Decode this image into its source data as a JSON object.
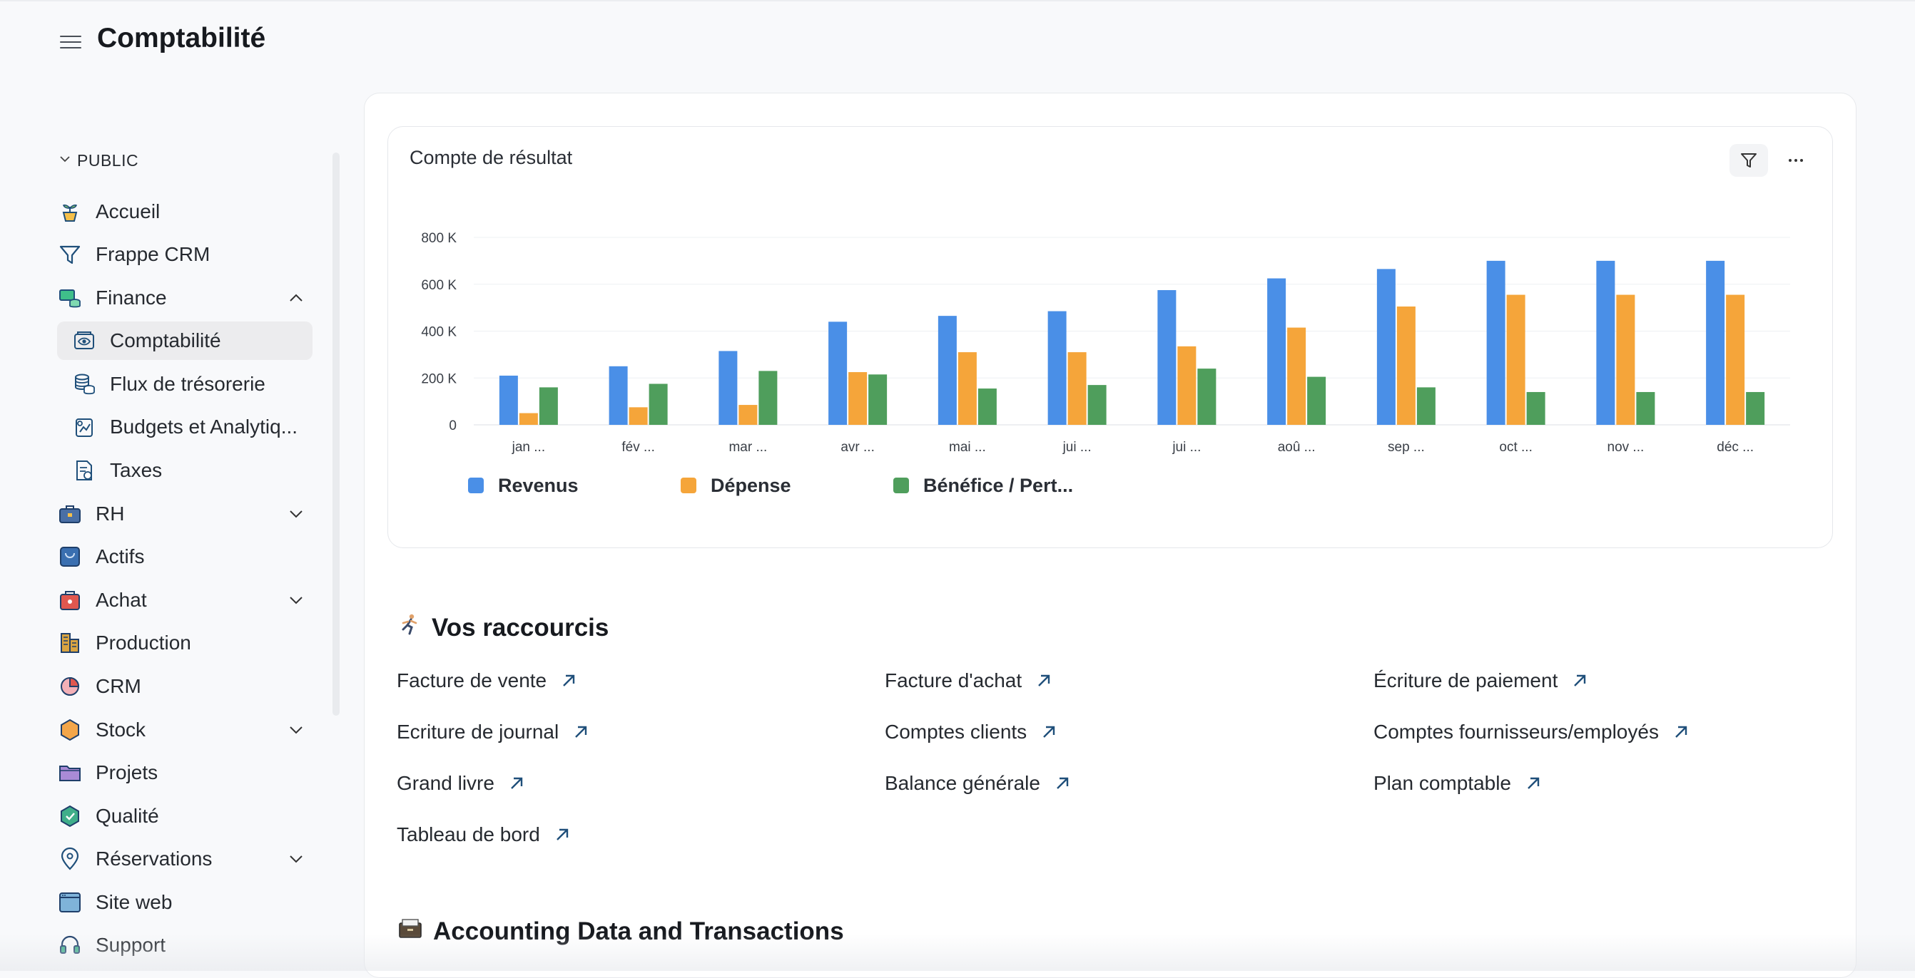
{
  "header": {
    "title": "Comptabilité"
  },
  "sidebar": {
    "section_label": "PUBLIC",
    "items": [
      {
        "label": "Accueil",
        "icon": "home-plant-icon"
      },
      {
        "label": "Frappe CRM",
        "icon": "funnel-icon"
      },
      {
        "label": "Finance",
        "icon": "finance-money-icon",
        "expanded": true
      },
      {
        "label": "Comptabilité",
        "icon": "accounting-eye-icon",
        "sub": true,
        "active": true
      },
      {
        "label": "Flux de trésorerie",
        "icon": "coins-stack-icon",
        "sub": true
      },
      {
        "label": "Budgets et Analytiq...",
        "icon": "budget-chart-icon",
        "sub": true
      },
      {
        "label": "Taxes",
        "icon": "tax-document-icon",
        "sub": true
      },
      {
        "label": "RH",
        "icon": "briefcase-icon",
        "collapsed": true
      },
      {
        "label": "Actifs",
        "icon": "assets-box-icon"
      },
      {
        "label": "Achat",
        "icon": "purchase-bag-icon",
        "collapsed": true
      },
      {
        "label": "Production",
        "icon": "factory-building-icon"
      },
      {
        "label": "CRM",
        "icon": "pie-chart-icon"
      },
      {
        "label": "Stock",
        "icon": "hexagon-box-icon",
        "collapsed": true
      },
      {
        "label": "Projets",
        "icon": "folder-icon"
      },
      {
        "label": "Qualité",
        "icon": "quality-shield-icon"
      },
      {
        "label": "Réservations",
        "icon": "location-pin-icon",
        "collapsed": true
      },
      {
        "label": "Site web",
        "icon": "browser-window-icon"
      },
      {
        "label": "Support",
        "icon": "headset-icon"
      }
    ]
  },
  "chart_card": {
    "title": "Compte de résultat"
  },
  "chart_data": {
    "type": "bar",
    "title": "Compte de résultat",
    "categories": [
      "jan ...",
      "fév ...",
      "mar ...",
      "avr ...",
      "mai ...",
      "jui ...",
      "jui ...",
      "aoû ...",
      "sep ...",
      "oct ...",
      "nov ...",
      "déc ..."
    ],
    "ylim": [
      0,
      800000
    ],
    "yticks": [
      "0",
      "200 K",
      "400 K",
      "600 K",
      "800 K"
    ],
    "grid": true,
    "legend_position": "bottom-left",
    "series": [
      {
        "name": "Revenus",
        "color": "#4a8fe7",
        "values": [
          210000,
          250000,
          315000,
          440000,
          465000,
          485000,
          575000,
          625000,
          665000,
          700000,
          700000,
          700000
        ]
      },
      {
        "name": "Dépense",
        "color": "#f5a53a",
        "values": [
          50000,
          75000,
          85000,
          225000,
          310000,
          310000,
          335000,
          415000,
          505000,
          555000,
          555000,
          555000
        ]
      },
      {
        "name": "Bénéfice / Pert...",
        "color": "#4f9e5c",
        "values": [
          160000,
          175000,
          230000,
          215000,
          155000,
          170000,
          240000,
          205000,
          160000,
          140000,
          140000,
          140000
        ]
      }
    ]
  },
  "shortcuts": {
    "title": "Vos raccourcis",
    "items": [
      [
        "Facture de vente",
        "Facture d'achat",
        "Écriture de paiement"
      ],
      [
        "Ecriture de journal",
        "Comptes clients",
        "Comptes fournisseurs/employés"
      ],
      [
        "Grand livre",
        "Balance générale",
        "Plan comptable"
      ],
      [
        "Tableau de bord"
      ]
    ]
  },
  "section2": {
    "title": "Accounting Data and Transactions"
  }
}
